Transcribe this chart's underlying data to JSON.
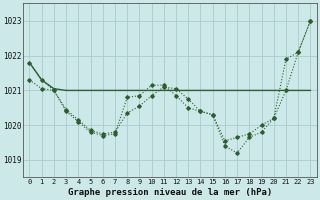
{
  "title": "Graphe pression niveau de la mer (hPa)",
  "bg_color": "#cce8e8",
  "grid_color": "#aacccc",
  "line_color": "#2d5e2d",
  "x_labels": [
    "0",
    "1",
    "2",
    "3",
    "4",
    "5",
    "6",
    "7",
    "8",
    "9",
    "10",
    "11",
    "12",
    "13",
    "14",
    "15",
    "16",
    "17",
    "18",
    "19",
    "20",
    "21",
    "22",
    "23"
  ],
  "ylim": [
    1018.5,
    1023.5
  ],
  "yticks": [
    1019,
    1020,
    1021,
    1022,
    1023
  ],
  "s1": [
    1021.8,
    1021.3,
    1021.05,
    1021.0,
    1021.0,
    1021.0,
    1021.0,
    1021.0,
    1021.0,
    1021.0,
    1021.0,
    1021.0,
    1021.0,
    1021.0,
    1021.0,
    1021.0,
    1021.0,
    1021.0,
    1021.0,
    1021.0,
    1021.0,
    1021.0,
    1021.0,
    1021.0
  ],
  "s2": [
    1021.8,
    1021.3,
    1021.0,
    1020.4,
    1020.1,
    1019.8,
    1019.7,
    1019.75,
    1020.8,
    1020.85,
    1021.15,
    1021.15,
    1020.85,
    1020.5,
    1020.4,
    1020.3,
    1019.4,
    1019.2,
    1019.65,
    1019.8,
    1020.2,
    1021.9,
    1022.1,
    1023.0
  ],
  "s3": [
    1021.3,
    1021.05,
    1021.0,
    1020.45,
    1020.15,
    1019.85,
    1019.75,
    1019.8,
    1020.35,
    1020.55,
    1020.85,
    1021.1,
    1021.05,
    1020.75,
    1020.4,
    1020.3,
    1019.55,
    1019.65,
    1019.75,
    1020.0,
    1020.2,
    1021.0,
    1022.1,
    1023.0
  ],
  "ylabel_fontsize": 6,
  "xlabel_fontsize": 6,
  "title_fontsize": 6.5
}
